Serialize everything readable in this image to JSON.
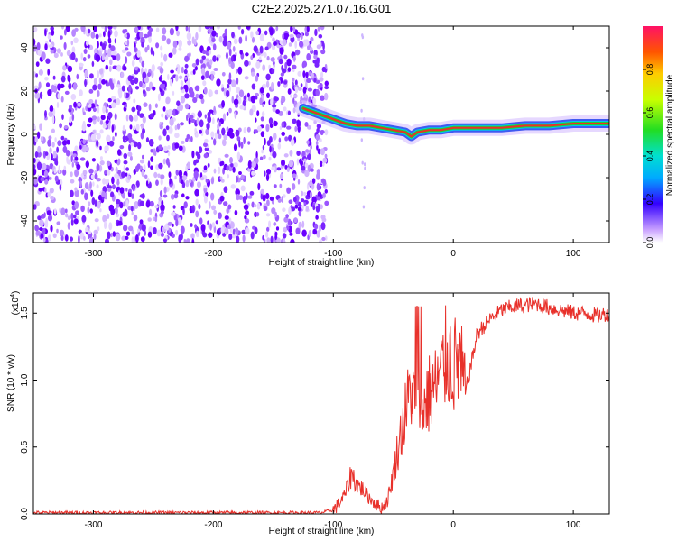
{
  "title": "C2E2.2025.271.07.16.G01",
  "colors": {
    "scatter_purple": "#6a00ff",
    "snr_line": "#e8302a",
    "track_core": "#e8302a",
    "track_mid": "#22cc33",
    "track_edge": "#2244ee"
  },
  "chart_data": [
    {
      "type": "heatmap",
      "xlabel": "Height of straight line (km)",
      "ylabel": "Frequency (Hz)",
      "xlim": [
        -350,
        130
      ],
      "ylim": [
        -50,
        50
      ],
      "xticks": [
        -300,
        -200,
        -100,
        0,
        100
      ],
      "yticks": [
        -40,
        -20,
        0,
        20,
        40
      ],
      "noise_region_x": [
        -350,
        -110
      ],
      "track": {
        "x": [
          -125,
          -110,
          -100,
          -90,
          -80,
          -70,
          -60,
          -50,
          -40,
          -35,
          -30,
          -20,
          -10,
          0,
          20,
          40,
          60,
          80,
          100,
          130
        ],
        "y": [
          12,
          9,
          7,
          5,
          4,
          4,
          3,
          2,
          1,
          -1,
          1,
          2,
          2,
          3,
          3,
          3,
          4,
          4,
          5,
          5
        ]
      },
      "colorbar": {
        "label": "Normalized spectral amplitude",
        "range": [
          0,
          1
        ],
        "ticks": [
          0.0,
          0.2,
          0.4,
          0.6,
          0.8
        ],
        "tick_labels": [
          "0.0",
          "0.2",
          "0.4",
          "0.6",
          "0.8"
        ]
      }
    },
    {
      "type": "line",
      "xlabel": "Height of straight line (km)",
      "ylabel": "SNR (10 * v/v)",
      "exponent_label": "(x10",
      "exponent_sup": "4",
      "xlim": [
        -350,
        130
      ],
      "ylim": [
        0,
        1.65
      ],
      "xticks": [
        -300,
        -200,
        -100,
        0,
        100
      ],
      "yticks": [
        0.0,
        0.5,
        1.0,
        1.5
      ],
      "ytick_labels": [
        "0.0",
        "0.5",
        "1.0",
        "1.5"
      ],
      "series": [
        {
          "name": "SNR",
          "x": [
            -350,
            -300,
            -200,
            -110,
            -100,
            -95,
            -90,
            -85,
            -80,
            -75,
            -70,
            -65,
            -60,
            -55,
            -50,
            -45,
            -40,
            -35,
            -30,
            -25,
            -20,
            -15,
            -10,
            -5,
            0,
            5,
            10,
            20,
            30,
            40,
            50,
            60,
            70,
            80,
            90,
            100,
            110,
            120,
            130
          ],
          "y": [
            0.01,
            0.01,
            0.01,
            0.01,
            0.03,
            0.08,
            0.15,
            0.3,
            0.22,
            0.18,
            0.12,
            0.08,
            0.04,
            0.1,
            0.3,
            0.55,
            0.75,
            0.95,
            0.7,
            0.8,
            0.9,
            0.95,
            1.05,
            1.2,
            1.1,
            1.15,
            0.9,
            1.35,
            1.45,
            1.52,
            1.55,
            1.56,
            1.57,
            1.54,
            1.52,
            1.5,
            1.5,
            1.48,
            1.5
          ]
        }
      ]
    }
  ]
}
